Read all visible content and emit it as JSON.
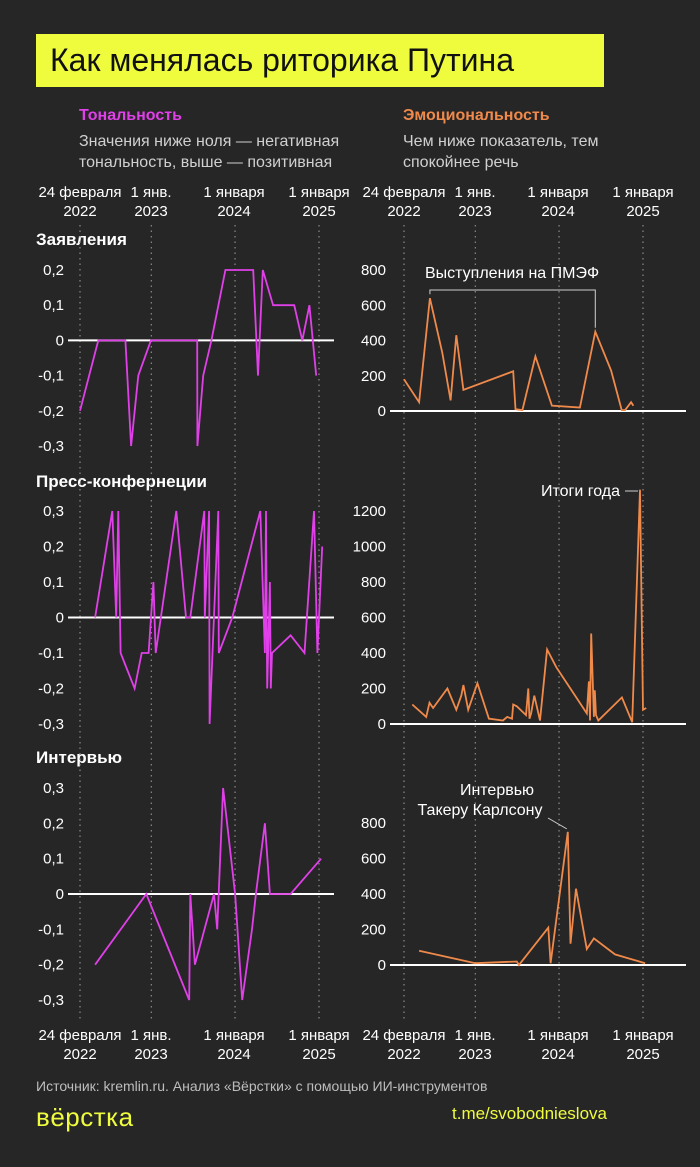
{
  "title": "Как менялась риторика Путина",
  "columns": {
    "tone": {
      "heading": "Тональность",
      "subtitle": "Значения ниже ноля — негативная тональность, выше — позитивная"
    },
    "emotion": {
      "heading": "Эмоциональность",
      "subtitle": "Чем ниже показатель, тем спокойнее речь"
    }
  },
  "sections": [
    "Заявления",
    "Пресс-конфернеции",
    "Интервью"
  ],
  "date_ticks": [
    {
      "line1": "24 февраля",
      "line2": "2022"
    },
    {
      "line1": "1 янв.",
      "line2": "2023"
    },
    {
      "line1": "1 января",
      "line2": "2024"
    },
    {
      "line1": "1 января",
      "line2": "2025"
    }
  ],
  "footer": {
    "source": "Источник: kremlin.ru. Анализ «Вёрстки» с помощью ИИ-инструментов",
    "logo": "вёрстка",
    "channel": "t.me/svobodnieslova"
  },
  "colors": {
    "tone": "#e040e8",
    "emotion": "#f08a4b",
    "accent": "#eefc3d",
    "background": "#262626"
  },
  "chart_data": [
    {
      "type": "line",
      "name": "tone-statements",
      "x_range": [
        "2022-02-24",
        "2025-02-01"
      ],
      "ylim": [
        -0.3,
        0.2
      ],
      "yticks": [
        -0.3,
        -0.2,
        -0.1,
        0,
        0.1,
        0.2
      ],
      "x": [
        "2022-02-24",
        "2022-05-15",
        "2022-08-15",
        "2022-09-10",
        "2022-10-05",
        "2022-11-05",
        "2022-12-30",
        "2023-07-20",
        "2023-07-21",
        "2023-08-15",
        "2023-09-20",
        "2023-11-20",
        "2024-01-20",
        "2024-03-20",
        "2024-04-10",
        "2024-05-01",
        "2024-06-15",
        "2024-08-15",
        "2024-09-15",
        "2024-10-20",
        "2024-11-20",
        "2024-12-20"
      ],
      "values": [
        -0.2,
        0,
        0,
        0,
        -0.3,
        -0.1,
        0,
        0,
        -0.3,
        -0.1,
        0,
        0.2,
        0.2,
        0.2,
        -0.1,
        0.2,
        0.1,
        0.1,
        0.1,
        0,
        0.1,
        -0.1
      ]
    },
    {
      "type": "line",
      "name": "emotion-statements",
      "x_range": [
        "2022-02-24",
        "2025-02-01"
      ],
      "ylim": [
        0,
        800
      ],
      "yticks": [
        0,
        200,
        400,
        600,
        800
      ],
      "annotations": [
        {
          "text": "Выступления на ПМЭФ",
          "points": [
            {
              "x": "2022-06-17",
              "y": 640
            },
            {
              "x": "2024-06-07",
              "y": 450
            }
          ]
        }
      ],
      "x": [
        "2022-02-24",
        "2022-05-01",
        "2022-06-17",
        "2022-08-10",
        "2022-09-15",
        "2022-10-10",
        "2022-11-10",
        "2023-06-15",
        "2023-06-25",
        "2023-07-25",
        "2023-09-20",
        "2023-12-01",
        "2024-04-01",
        "2024-06-07",
        "2024-08-15",
        "2024-09-30",
        "2024-10-15",
        "2024-11-10",
        "2024-11-20"
      ],
      "values": [
        180,
        50,
        640,
        330,
        60,
        430,
        120,
        225,
        10,
        5,
        310,
        30,
        20,
        450,
        230,
        5,
        5,
        50,
        30
      ]
    },
    {
      "type": "line",
      "name": "tone-press",
      "x_range": [
        "2022-02-24",
        "2025-02-01"
      ],
      "ylim": [
        -0.3,
        0.3
      ],
      "yticks": [
        -0.3,
        -0.2,
        -0.1,
        0,
        0.1,
        0.2,
        0.3
      ],
      "x": [
        "2022-05-01",
        "2022-07-15",
        "2022-08-01",
        "2022-08-10",
        "2022-08-20",
        "2022-10-20",
        "2022-11-20",
        "2022-12-20",
        "2023-01-10",
        "2023-01-20",
        "2023-04-20",
        "2023-06-01",
        "2023-06-20",
        "2023-08-20",
        "2023-08-22",
        "2023-09-10",
        "2023-09-12",
        "2023-10-20",
        "2023-10-22",
        "2023-12-20",
        "2024-04-20",
        "2024-05-10",
        "2024-05-15",
        "2024-05-20",
        "2024-06-01",
        "2024-06-05",
        "2024-06-10",
        "2024-08-30",
        "2024-10-30",
        "2024-12-10",
        "2024-12-25",
        "2025-01-15"
      ],
      "values": [
        0,
        0.3,
        0,
        0.3,
        -0.1,
        -0.2,
        -0.1,
        -0.1,
        0.1,
        -0.1,
        0.3,
        0,
        0,
        0.3,
        0,
        0.3,
        -0.3,
        0.3,
        -0.1,
        0,
        0.3,
        -0.1,
        0.3,
        -0.2,
        0.1,
        -0.2,
        -0.1,
        -0.05,
        -0.1,
        0.3,
        -0.1,
        0.2
      ]
    },
    {
      "type": "line",
      "name": "emotion-press",
      "x_range": [
        "2022-02-24",
        "2025-02-01"
      ],
      "ylim": [
        0,
        1300
      ],
      "yticks": [
        0,
        200,
        400,
        600,
        800,
        1000,
        1200
      ],
      "annotations": [
        {
          "text": "Итоги года",
          "points": [
            {
              "x": "2024-12-19",
              "y": 1320
            }
          ]
        }
      ],
      "x": [
        "2022-04-01",
        "2022-06-01",
        "2022-06-15",
        "2022-07-01",
        "2022-09-01",
        "2022-10-10",
        "2022-11-01",
        "2022-11-10",
        "2022-12-01",
        "2023-01-10",
        "2023-03-01",
        "2023-05-01",
        "2023-05-20",
        "2023-06-10",
        "2023-06-15",
        "2023-07-01",
        "2023-08-10",
        "2023-08-20",
        "2023-08-25",
        "2023-09-01",
        "2023-09-15",
        "2023-10-10",
        "2023-11-10",
        "2023-12-20",
        "2024-05-01",
        "2024-05-10",
        "2024-05-15",
        "2024-05-20",
        "2024-06-01",
        "2024-06-05",
        "2024-06-10",
        "2024-06-20",
        "2024-10-01",
        "2024-11-15",
        "2024-12-19",
        "2025-01-01",
        "2025-01-15"
      ],
      "values": [
        110,
        40,
        120,
        90,
        200,
        80,
        160,
        220,
        80,
        230,
        30,
        20,
        40,
        30,
        110,
        100,
        50,
        200,
        30,
        60,
        160,
        20,
        420,
        320,
        60,
        240,
        20,
        510,
        40,
        190,
        50,
        20,
        150,
        10,
        1320,
        80,
        90
      ]
    },
    {
      "type": "line",
      "name": "tone-interviews",
      "x_range": [
        "2022-02-24",
        "2025-02-01"
      ],
      "ylim": [
        -0.3,
        0.3
      ],
      "yticks": [
        -0.3,
        -0.2,
        -0.1,
        0,
        0.1,
        0.2,
        0.3
      ],
      "x": [
        "2022-05-01",
        "2022-12-10",
        "2023-06-15",
        "2023-06-20",
        "2023-07-10",
        "2023-10-01",
        "2023-10-15",
        "2023-11-10",
        "2024-01-01",
        "2024-02-01",
        "2024-03-15",
        "2024-04-01",
        "2024-05-10",
        "2024-06-01",
        "2024-08-30",
        "2025-01-10"
      ],
      "values": [
        -0.2,
        0,
        -0.3,
        0,
        -0.2,
        0,
        -0.1,
        0.3,
        0,
        -0.3,
        -0.1,
        0,
        0.2,
        0,
        0,
        0.1
      ]
    },
    {
      "type": "line",
      "name": "emotion-interviews",
      "x_range": [
        "2022-02-24",
        "2025-02-01"
      ],
      "ylim": [
        0,
        800
      ],
      "yticks": [
        0,
        200,
        400,
        600,
        800
      ],
      "annotations": [
        {
          "text": "Интервью",
          "text2": "Такеру Карлсону",
          "points": [
            {
              "x": "2024-02-08",
              "y": 750
            }
          ]
        }
      ],
      "x": [
        "2022-05-01",
        "2023-01-01",
        "2023-07-01",
        "2023-07-10",
        "2023-11-15",
        "2023-11-25",
        "2024-02-08",
        "2024-02-20",
        "2024-03-15",
        "2024-05-01",
        "2024-06-01",
        "2024-09-01",
        "2025-01-10"
      ],
      "values": [
        80,
        10,
        20,
        0,
        210,
        10,
        750,
        120,
        430,
        90,
        150,
        60,
        10
      ]
    }
  ]
}
